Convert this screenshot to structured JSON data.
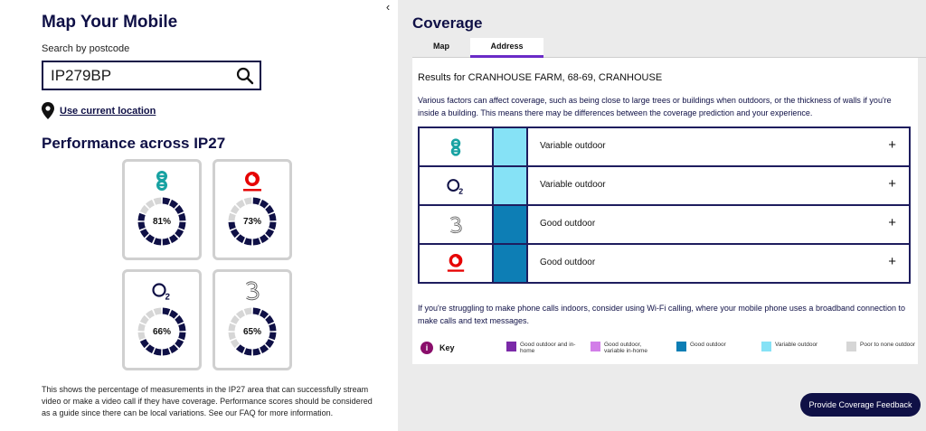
{
  "left": {
    "title": "Map Your Mobile",
    "search_label": "Search by postcode",
    "search_value": "IP279BP",
    "use_location": "Use current location",
    "performance_title": "Performance across IP27",
    "cards": [
      {
        "network": "EE",
        "percent_label": "81%",
        "percent": 81
      },
      {
        "network": "Vodafone",
        "percent_label": "73%",
        "percent": 73
      },
      {
        "network": "O2",
        "percent_label": "66%",
        "percent": 66
      },
      {
        "network": "Three",
        "percent_label": "65%",
        "percent": 65
      }
    ],
    "description": "This shows the percentage of measurements in the IP27 area that can successfully stream video or make a video call if they have coverage. Performance scores should be considered as a guide since there can be local variations. See our FAQ for more information."
  },
  "collapse_icon": "chevron-left-icon",
  "right": {
    "title": "Coverage",
    "tabs": [
      {
        "label": "Map",
        "active": false
      },
      {
        "label": "Address",
        "active": true
      }
    ],
    "results": "Results for CRANHOUSE FARM, 68-69, CRANHOUSE",
    "factors": "Various factors can affect coverage, such as being close to large trees or buildings when outdoors, or the thickness of walls if you're inside a building. This means there may be differences between the coverage prediction and your experience.",
    "rows": [
      {
        "network": "EE",
        "coverage": "Variable outdoor",
        "color": "#86e2f6"
      },
      {
        "network": "O2",
        "coverage": "Variable outdoor",
        "color": "#86e2f6"
      },
      {
        "network": "Three",
        "coverage": "Good outdoor",
        "color": "#0d7eb5"
      },
      {
        "network": "Vodafone",
        "coverage": "Good outdoor",
        "color": "#0d7eb5"
      }
    ],
    "expand_symbol": "+",
    "struggle": "If you're struggling to make phone calls indoors, consider using Wi-Fi calling, where your mobile phone uses a broadband connection to make calls and text messages.",
    "key_label": "Key",
    "legend": [
      {
        "label": "Good outdoor and in-home",
        "color": "#7b2aa8"
      },
      {
        "label": "Good outdoor, variable in-home",
        "color": "#d27ee8"
      },
      {
        "label": "Good outdoor",
        "color": "#0d7eb5"
      },
      {
        "label": "Variable outdoor",
        "color": "#86e2f6"
      },
      {
        "label": "Poor to none outdoor",
        "color": "#d6d6d6"
      }
    ]
  },
  "feedback_button": "Provide Coverage Feedback",
  "colors": {
    "navy": "#0f1046",
    "ring_fill": "#0f1046",
    "ring_empty": "#d6d6d6",
    "ee_teal": "#17a2a2",
    "vodafone_red": "#e60000",
    "tab_accent": "#6a2bc7"
  }
}
